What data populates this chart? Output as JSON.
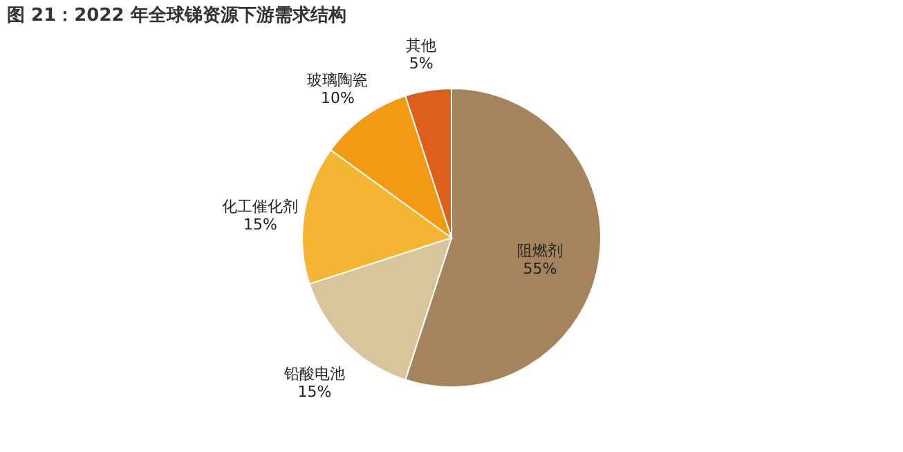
{
  "chart_data": {
    "type": "pie",
    "title": "图 21：2022 年全球锑资源下游需求结构",
    "categories": [
      "阻燃剂",
      "铅酸电池",
      "化工催化剂",
      "玻璃陶瓷",
      "其他"
    ],
    "values": [
      55,
      15,
      15,
      10,
      5
    ],
    "colors": [
      "#a5845d",
      "#d8c59b",
      "#f4b532",
      "#f39a12",
      "#dd5f1c"
    ],
    "value_labels": [
      "55%",
      "15%",
      "15%",
      "10%",
      "5%"
    ],
    "legend": false
  }
}
